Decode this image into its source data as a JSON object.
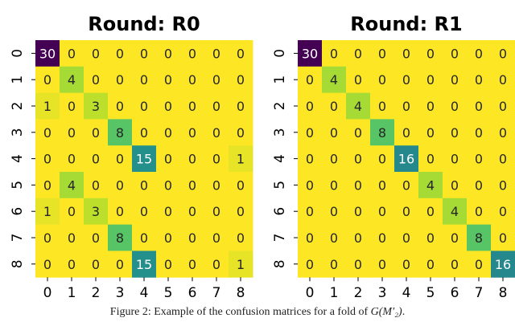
{
  "chart_data": [
    {
      "type": "heatmap",
      "title": "Round: R0",
      "x_ticks": [
        "0",
        "1",
        "2",
        "3",
        "4",
        "5",
        "6",
        "7",
        "8"
      ],
      "y_ticks": [
        "0",
        "1",
        "2",
        "3",
        "4",
        "5",
        "6",
        "7",
        "8"
      ],
      "colormap": "viridis_r",
      "vmin": 0,
      "vmax": 30,
      "values": [
        [
          30,
          0,
          0,
          0,
          0,
          0,
          0,
          0,
          0
        ],
        [
          0,
          4,
          0,
          0,
          0,
          0,
          0,
          0,
          0
        ],
        [
          1,
          0,
          3,
          0,
          0,
          0,
          0,
          0,
          0
        ],
        [
          0,
          0,
          0,
          8,
          0,
          0,
          0,
          0,
          0
        ],
        [
          0,
          0,
          0,
          0,
          15,
          0,
          0,
          0,
          1
        ],
        [
          0,
          4,
          0,
          0,
          0,
          0,
          0,
          0,
          0
        ],
        [
          1,
          0,
          3,
          0,
          0,
          0,
          0,
          0,
          0
        ],
        [
          0,
          0,
          0,
          8,
          0,
          0,
          0,
          0,
          0
        ],
        [
          0,
          0,
          0,
          0,
          15,
          0,
          0,
          0,
          1
        ]
      ]
    },
    {
      "type": "heatmap",
      "title": "Round: R1",
      "x_ticks": [
        "0",
        "1",
        "2",
        "3",
        "4",
        "5",
        "6",
        "7",
        "8"
      ],
      "y_ticks": [
        "0",
        "1",
        "2",
        "3",
        "4",
        "5",
        "6",
        "7",
        "8"
      ],
      "colormap": "viridis_r",
      "vmin": 0,
      "vmax": 30,
      "values": [
        [
          30,
          0,
          0,
          0,
          0,
          0,
          0,
          0,
          0
        ],
        [
          0,
          4,
          0,
          0,
          0,
          0,
          0,
          0,
          0
        ],
        [
          0,
          0,
          4,
          0,
          0,
          0,
          0,
          0,
          0
        ],
        [
          0,
          0,
          0,
          8,
          0,
          0,
          0,
          0,
          0
        ],
        [
          0,
          0,
          0,
          0,
          16,
          0,
          0,
          0,
          0
        ],
        [
          0,
          0,
          0,
          0,
          0,
          4,
          0,
          0,
          0
        ],
        [
          0,
          0,
          0,
          0,
          0,
          0,
          4,
          0,
          0
        ],
        [
          0,
          0,
          0,
          0,
          0,
          0,
          0,
          8,
          0
        ],
        [
          0,
          0,
          0,
          0,
          0,
          0,
          0,
          0,
          16
        ]
      ]
    }
  ],
  "caption": {
    "prefix": "Figure 2: Example of the confusion matrices for a fold of ",
    "math": "G(M′₂)",
    "suffix": "."
  }
}
